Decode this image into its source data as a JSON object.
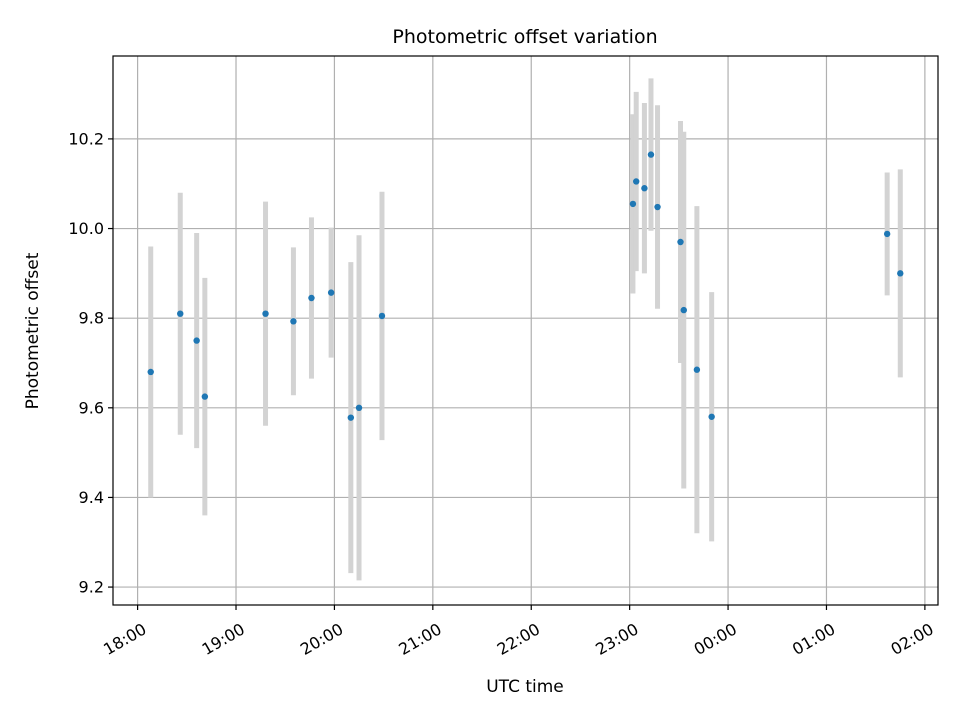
{
  "chart_data": {
    "type": "scatter",
    "title": "Photometric offset variation",
    "xlabel": "UTC time",
    "ylabel": "Photometric offset",
    "x_unit": "hours",
    "xlim": [
      "17:45",
      "02:08 (+1 day)"
    ],
    "ylim": [
      9.16,
      10.385
    ],
    "x_ticks": [
      {
        "label": "18:00",
        "hour": 18
      },
      {
        "label": "19:00",
        "hour": 19
      },
      {
        "label": "20:00",
        "hour": 20
      },
      {
        "label": "21:00",
        "hour": 21
      },
      {
        "label": "22:00",
        "hour": 22
      },
      {
        "label": "23:00",
        "hour": 23
      },
      {
        "label": "00:00",
        "hour": 24
      },
      {
        "label": "01:00",
        "hour": 25
      },
      {
        "label": "02:00",
        "hour": 26
      }
    ],
    "y_ticks": [
      "9.2",
      "9.4",
      "9.6",
      "9.8",
      "10.0",
      "10.2"
    ],
    "grid": true,
    "marker_color": "#1f77b4",
    "errorbar_color": "#d3d3d3",
    "points": [
      {
        "time": "18:08",
        "y": 9.68,
        "yerr": 0.28
      },
      {
        "time": "18:26",
        "y": 9.81,
        "yerr": 0.27
      },
      {
        "time": "18:36",
        "y": 9.75,
        "yerr": 0.24
      },
      {
        "time": "18:41",
        "y": 9.625,
        "yerr": 0.265
      },
      {
        "time": "19:18",
        "y": 9.81,
        "yerr": 0.25
      },
      {
        "time": "19:35",
        "y": 9.793,
        "yerr": 0.165
      },
      {
        "time": "19:46",
        "y": 9.845,
        "yerr": 0.18
      },
      {
        "time": "19:58",
        "y": 9.857,
        "yerr": 0.145
      },
      {
        "time": "20:10",
        "y": 9.578,
        "yerr": 0.347
      },
      {
        "time": "20:15",
        "y": 9.6,
        "yerr": 0.385
      },
      {
        "time": "20:29",
        "y": 9.805,
        "yerr": 0.277
      },
      {
        "time": "23:02",
        "y": 10.055,
        "yerr": 0.2
      },
      {
        "time": "23:04",
        "y": 10.105,
        "yerr": 0.2
      },
      {
        "time": "23:09",
        "y": 10.09,
        "yerr": 0.19
      },
      {
        "time": "23:13",
        "y": 10.165,
        "yerr": 0.17
      },
      {
        "time": "23:17",
        "y": 10.048,
        "yerr": 0.227
      },
      {
        "time": "23:31",
        "y": 9.97,
        "yerr": 0.27
      },
      {
        "time": "23:33",
        "y": 9.818,
        "yerr": 0.398
      },
      {
        "time": "23:41",
        "y": 9.685,
        "yerr": 0.365
      },
      {
        "time": "23:50",
        "y": 9.58,
        "yerr": 0.278
      },
      {
        "time": "01:37",
        "y": 9.988,
        "yerr": 0.137
      },
      {
        "time": "01:45",
        "y": 9.9,
        "yerr": 0.232
      }
    ]
  }
}
